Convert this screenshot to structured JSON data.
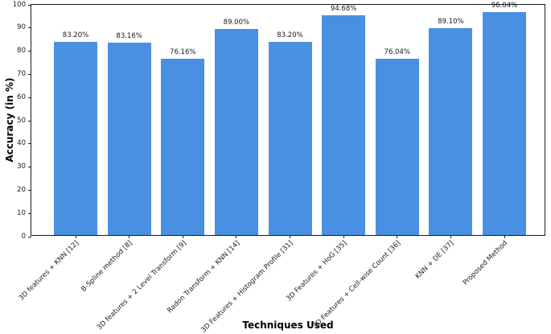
{
  "chart_data": {
    "type": "bar",
    "categories": [
      "3D features + KNN [12]",
      "B-Spline method [8]",
      "3D features + 2 Level Transform [9]",
      "Radon Transform + KNN [14]",
      "3D Features + Histogram Profile [31]",
      "3D Features + HoG [35]",
      "3D Features + Cell-wise Count [36]",
      "KNN + DE [37]",
      "Proposed Method"
    ],
    "values": [
      83.2,
      83.16,
      76.16,
      89.0,
      83.2,
      94.68,
      76.04,
      89.1,
      96.04
    ],
    "value_labels": [
      "83.20%",
      "83.16%",
      "76.16%",
      "89.00%",
      "83.20%",
      "94.68%",
      "76.04%",
      "89.10%",
      "96.04%"
    ],
    "xlabel": "Techniques Used",
    "ylabel": "Accuracy (in %)",
    "ylim": [
      0,
      100
    ],
    "yticks": [
      0,
      10,
      20,
      30,
      40,
      50,
      60,
      70,
      80,
      90,
      100
    ],
    "grid": false,
    "legend": "none",
    "bar_color": "#4a90e2",
    "axis_color": "#1a1a1a"
  }
}
